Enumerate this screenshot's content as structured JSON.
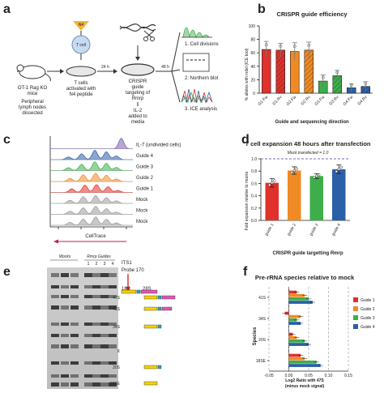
{
  "panel_labels": {
    "a": "a",
    "b": "b",
    "c": "c",
    "d": "d",
    "e": "e",
    "f": "f"
  },
  "panel_a": {
    "mouse_label": "OT-1 Rag KO\nmice",
    "mouse_sub": "Peripheral\nlymph nodes\ndissected",
    "n4_label": "N4",
    "tcell_label": "T cell",
    "arrow1": "24 h",
    "tcell_caption": "T cells\nactivated with\nN4 peptide",
    "crispr_caption": "CRISPR\nguide\ntargeting of\nRmrp",
    "il2_caption": "IL-2\nadded to\nmedia",
    "arrow2": "48 h",
    "outcomes": [
      "1. Cell divisions",
      "2. Northern blot",
      "3. ICE analysis"
    ]
  },
  "chart_data": [
    {
      "panel": "b",
      "type": "bar",
      "title": "CRISPR guide efficiency",
      "xlabel": "Guide and sequencing direction",
      "ylabel": "% alleles with indel (ICE tool)",
      "ylim": [
        0,
        100
      ],
      "yticks": [
        0,
        20,
        40,
        60,
        80,
        100
      ],
      "categories": [
        "G1 Fw",
        "G1 Rv",
        "G2 Fw",
        "G2 Rv",
        "G3 Fw",
        "G3 Rv",
        "G4 Fw",
        "G4 Rv"
      ],
      "values": [
        65,
        64,
        62,
        64,
        18,
        26,
        8,
        10
      ],
      "errors": [
        12,
        10,
        13,
        12,
        9,
        8,
        6,
        7
      ],
      "colors": [
        "#e0312b",
        "#e0312b",
        "#f08a24",
        "#f08a24",
        "#3dae49",
        "#3dae49",
        "#2b5fa8",
        "#2b5fa8"
      ],
      "hatched": [
        false,
        true,
        false,
        true,
        false,
        true,
        false,
        true
      ]
    },
    {
      "panel": "d",
      "type": "bar",
      "title": "T cell expansion 48 hours after transfection",
      "annotation": "Mock transfected = 1.0",
      "xlabel": "CRISPR guide targetting Rmrp",
      "ylabel": "Fold expansion relative to mocks",
      "ylim": [
        0,
        1.0
      ],
      "yticks": [
        0,
        0.2,
        0.4,
        0.6,
        0.8,
        1.0
      ],
      "categories": [
        "guide 1",
        "guide 2",
        "guide 3",
        "guide 4"
      ],
      "values": [
        0.61,
        0.81,
        0.72,
        0.83
      ],
      "errors": [
        0.07,
        0.06,
        0.04,
        0.07
      ],
      "colors": [
        "#e0312b",
        "#f08a24",
        "#3dae49",
        "#2b5fa8"
      ]
    },
    {
      "panel": "f",
      "type": "bar",
      "orientation": "horizontal",
      "title": "Pre-rRNA species relative to mock",
      "xlabel": "Log2 Ratio with 47S\n(minus mock signal)",
      "ylabel": "Species",
      "xlim": [
        -0.05,
        0.15
      ],
      "xticks": [
        "-0.05",
        "0.00",
        "0.05",
        "0.10",
        "0.15"
      ],
      "categories": [
        "41S",
        "34S",
        "20S",
        "18SE"
      ],
      "series": [
        {
          "name": "Guide 1",
          "color": "#e0312b",
          "values": [
            0.02,
            -0.01,
            0.01,
            0.03
          ]
        },
        {
          "name": "Guide 2",
          "color": "#f08a24",
          "values": [
            0.04,
            0.03,
            0.02,
            0.04
          ]
        },
        {
          "name": "Guide 3",
          "color": "#3dae49",
          "values": [
            0.05,
            0.02,
            0.04,
            0.07
          ]
        },
        {
          "name": "Guide 4",
          "color": "#2b5fa8",
          "values": [
            0.06,
            0.03,
            0.05,
            0.08
          ]
        }
      ]
    }
  ],
  "panel_c": {
    "labels": [
      "IL-7 (undivided cells)",
      "Guide 4",
      "Guide 3",
      "Guide 2",
      "Guide 1",
      "Mock",
      "Mock",
      "Mock"
    ],
    "colors": [
      "#7a5fb3",
      "#2b5fa8",
      "#3dae49",
      "#f08a24",
      "#e0312b",
      "#9a9a9a",
      "#9a9a9a",
      "#9a9a9a"
    ],
    "xlabel": "CellTrace"
  },
  "panel_e": {
    "group_mocks": "Mocks",
    "group_guides": "Rmrp Guides",
    "lane_numbers": [
      "1",
      "2",
      "3",
      "4"
    ],
    "probe_line1": "ITS1",
    "probe_line2": "Probe 170",
    "scheme_18s": "18S",
    "scheme_28s": "28S",
    "bands": [
      "47S",
      "41S",
      "34S",
      "X",
      "20S",
      "18SE"
    ]
  }
}
